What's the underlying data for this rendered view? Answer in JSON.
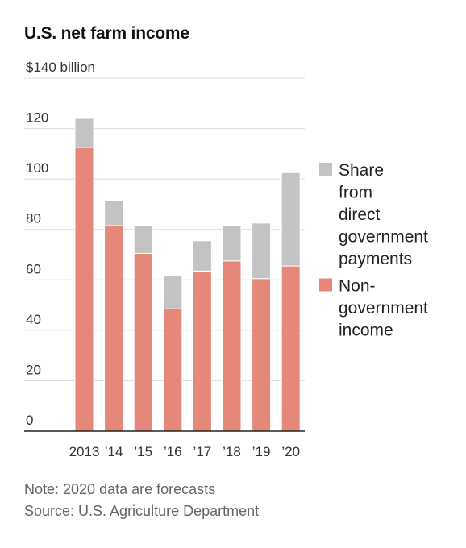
{
  "chart_data": {
    "type": "bar",
    "stacked": true,
    "title": "U.S. net farm income",
    "y_unit_label": "$140 billion",
    "categories": [
      "2013",
      "’14",
      "’15",
      "’16",
      "’17",
      "’18",
      "’19",
      "’20"
    ],
    "series": [
      {
        "name": "Non-government income",
        "color": "#e5887a",
        "values": [
          112.5,
          81.5,
          70.5,
          48.5,
          63.5,
          67.5,
          60.5,
          65.5
        ]
      },
      {
        "name": "Share from direct government payments",
        "color": "#c3c3c3",
        "values": [
          11.5,
          10,
          11,
          13,
          12,
          14,
          22,
          37
        ]
      }
    ],
    "ylim": [
      0,
      140
    ],
    "yticks": [
      0,
      20,
      40,
      60,
      80,
      100,
      120
    ],
    "grid": true,
    "legend_position": "right",
    "legend": [
      {
        "series": 1,
        "lines": [
          "Share",
          "from",
          "direct",
          "government",
          "payments"
        ]
      },
      {
        "series": 0,
        "lines": [
          "Non-",
          "government",
          "income"
        ]
      }
    ]
  },
  "note": "Note: 2020 data are forecasts",
  "source": "Source: U.S. Agriculture Department"
}
